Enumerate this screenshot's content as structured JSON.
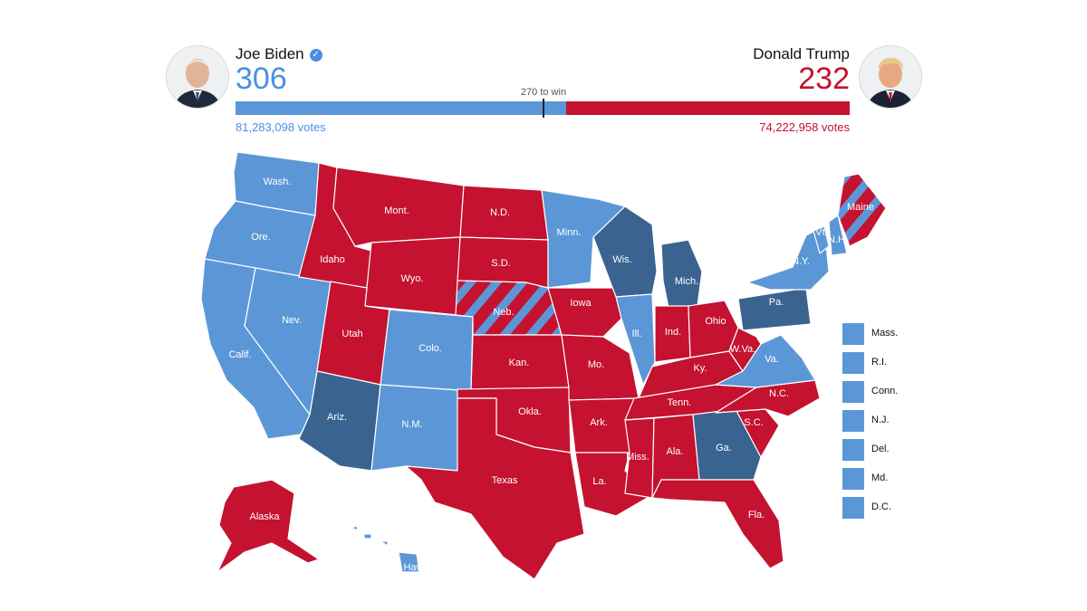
{
  "header": {
    "left": {
      "name": "Joe Biden",
      "electoral_votes": "306",
      "votes": "81,283,098 votes",
      "color": "#4a90e2",
      "verified_icon": "check-circle-icon"
    },
    "right": {
      "name": "Donald Trump",
      "electoral_votes": "232",
      "votes": "74,222,958 votes",
      "color": "#c8102e"
    },
    "threshold_label": "270 to win",
    "bar_split_fraction": 0.4613
  },
  "colors": {
    "dem_light": "#5b97d6",
    "dem_flip": "#3b6390",
    "rep": "#c41230",
    "border": "#ffffff"
  },
  "map": {
    "states": [
      {
        "abbr": "WA",
        "label": "Wash.",
        "party": "dem_light"
      },
      {
        "abbr": "OR",
        "label": "Ore.",
        "party": "dem_light"
      },
      {
        "abbr": "CA",
        "label": "Calif.",
        "party": "dem_light"
      },
      {
        "abbr": "NV",
        "label": "Nev.",
        "party": "dem_light"
      },
      {
        "abbr": "ID",
        "label": "Idaho",
        "party": "rep"
      },
      {
        "abbr": "MT",
        "label": "Mont.",
        "party": "rep"
      },
      {
        "abbr": "WY",
        "label": "Wyo.",
        "party": "rep"
      },
      {
        "abbr": "UT",
        "label": "Utah",
        "party": "rep"
      },
      {
        "abbr": "AZ",
        "label": "Ariz.",
        "party": "dem_flip"
      },
      {
        "abbr": "CO",
        "label": "Colo.",
        "party": "dem_light"
      },
      {
        "abbr": "NM",
        "label": "N.M.",
        "party": "dem_light"
      },
      {
        "abbr": "ND",
        "label": "N.D.",
        "party": "rep"
      },
      {
        "abbr": "SD",
        "label": "S.D.",
        "party": "rep"
      },
      {
        "abbr": "NE",
        "label": "Neb.",
        "party": "split"
      },
      {
        "abbr": "KS",
        "label": "Kan.",
        "party": "rep"
      },
      {
        "abbr": "OK",
        "label": "Okla.",
        "party": "rep"
      },
      {
        "abbr": "TX",
        "label": "Texas",
        "party": "rep"
      },
      {
        "abbr": "MN",
        "label": "Minn.",
        "party": "dem_light"
      },
      {
        "abbr": "IA",
        "label": "Iowa",
        "party": "rep"
      },
      {
        "abbr": "MO",
        "label": "Mo.",
        "party": "rep"
      },
      {
        "abbr": "AR",
        "label": "Ark.",
        "party": "rep"
      },
      {
        "abbr": "LA",
        "label": "La.",
        "party": "rep"
      },
      {
        "abbr": "WI",
        "label": "Wis.",
        "party": "dem_flip"
      },
      {
        "abbr": "IL",
        "label": "Ill.",
        "party": "dem_light"
      },
      {
        "abbr": "MI",
        "label": "Mich.",
        "party": "dem_flip"
      },
      {
        "abbr": "IN",
        "label": "Ind.",
        "party": "rep"
      },
      {
        "abbr": "OH",
        "label": "Ohio",
        "party": "rep"
      },
      {
        "abbr": "KY",
        "label": "Ky.",
        "party": "rep"
      },
      {
        "abbr": "TN",
        "label": "Tenn.",
        "party": "rep"
      },
      {
        "abbr": "MS",
        "label": "Miss.",
        "party": "rep"
      },
      {
        "abbr": "AL",
        "label": "Ala.",
        "party": "rep"
      },
      {
        "abbr": "GA",
        "label": "Ga.",
        "party": "dem_flip"
      },
      {
        "abbr": "FL",
        "label": "Fla.",
        "party": "rep"
      },
      {
        "abbr": "SC",
        "label": "S.C.",
        "party": "rep"
      },
      {
        "abbr": "NC",
        "label": "N.C.",
        "party": "rep"
      },
      {
        "abbr": "VA",
        "label": "Va.",
        "party": "dem_light"
      },
      {
        "abbr": "WV",
        "label": "W.Va.",
        "party": "rep"
      },
      {
        "abbr": "PA",
        "label": "Pa.",
        "party": "dem_flip"
      },
      {
        "abbr": "NY",
        "label": "N.Y.",
        "party": "dem_light"
      },
      {
        "abbr": "VT",
        "label": "Vt.",
        "party": "dem_light"
      },
      {
        "abbr": "NH",
        "label": "N.H.",
        "party": "dem_light"
      },
      {
        "abbr": "ME",
        "label": "Maine",
        "party": "split"
      },
      {
        "abbr": "AK",
        "label": "Alaska",
        "party": "rep"
      },
      {
        "abbr": "HI",
        "label": "Hawaii",
        "party": "dem_light"
      }
    ],
    "small_states": [
      {
        "abbr": "MA",
        "label": "Mass.",
        "party": "dem_light"
      },
      {
        "abbr": "RI",
        "label": "R.I.",
        "party": "dem_light"
      },
      {
        "abbr": "CT",
        "label": "Conn.",
        "party": "dem_light"
      },
      {
        "abbr": "NJ",
        "label": "N.J.",
        "party": "dem_light"
      },
      {
        "abbr": "DE",
        "label": "Del.",
        "party": "dem_light"
      },
      {
        "abbr": "MD",
        "label": "Md.",
        "party": "dem_light"
      },
      {
        "abbr": "DC",
        "label": "D.C.",
        "party": "dem_light"
      }
    ]
  }
}
